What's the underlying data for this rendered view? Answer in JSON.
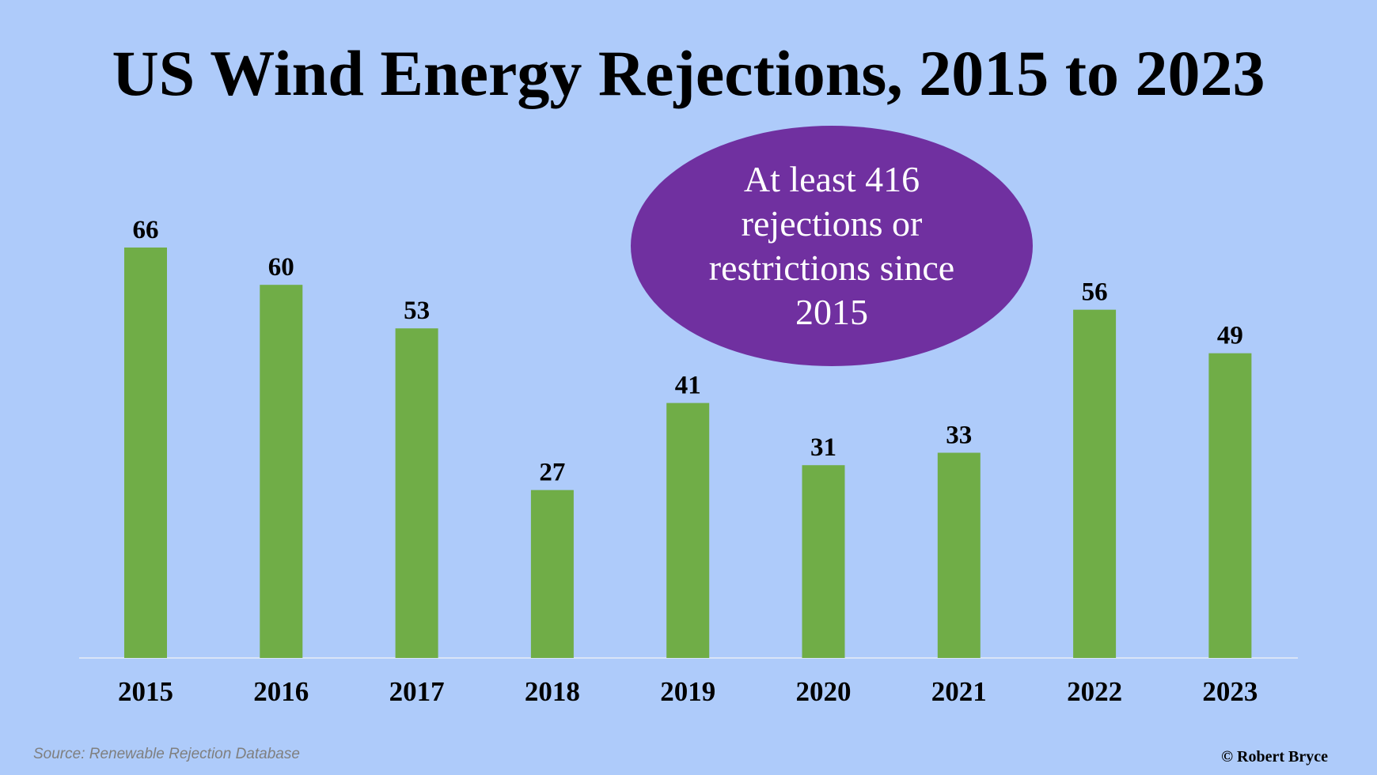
{
  "chart_data": {
    "type": "bar",
    "title": "US Wind Energy Rejections, 2015 to 2023",
    "categories": [
      "2015",
      "2016",
      "2017",
      "2018",
      "2019",
      "2020",
      "2021",
      "2022",
      "2023"
    ],
    "values": [
      66,
      60,
      53,
      27,
      41,
      31,
      33,
      56,
      49
    ],
    "xlabel": "",
    "ylabel": "",
    "ylim": [
      0,
      66
    ],
    "grid": false,
    "legend": "none",
    "data_labels": true,
    "bar_color": "#70ad47",
    "baseline_color": "#d9e4f7"
  },
  "callout": {
    "text": "At least 416 rejections or restrictions since 2015",
    "color": "#7030a0",
    "text_color": "#ffffff"
  },
  "footer": {
    "source": "Source: Renewable Rejection Database",
    "credit": "© Robert Bryce"
  },
  "colors": {
    "background": "#aecbfa"
  }
}
